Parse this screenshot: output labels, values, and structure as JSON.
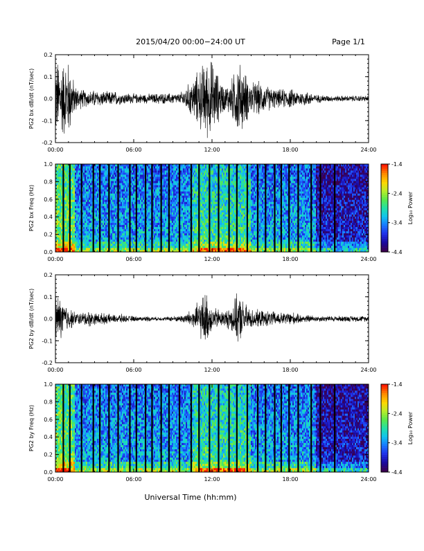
{
  "header": {
    "title": "2015/04/20  00:00−24:00 UT",
    "page": "Page 1/1"
  },
  "footer": {
    "xlabel": "Universal Time (hh:mm)"
  },
  "colors": {
    "trace": "#000000",
    "gap": "#000000",
    "colormap": [
      "#3a0050",
      "#1a0aa0",
      "#1f2ee8",
      "#1a78ff",
      "#11c3ee",
      "#21e0a8",
      "#5ae84a",
      "#b8ec2a",
      "#ffd600",
      "#ff8a00",
      "#ff1a00"
    ]
  },
  "chart_data": [
    {
      "type": "line",
      "ylabel": "PG2 bx dB/dt (nT/sec)",
      "ylim": [
        -0.2,
        0.2
      ],
      "yticks": [
        "-0.2",
        "-0.1",
        "0.0",
        "0.1",
        "0.2"
      ],
      "xlim": [
        0,
        24
      ],
      "xticks": [
        "00:00",
        "06:00",
        "12:00",
        "18:00",
        "24:00"
      ],
      "series": [
        {
          "x": [
            0,
            0.5,
            1,
            1.5,
            2,
            2.5,
            3,
            3.5,
            4,
            4.5,
            5,
            5.5,
            6,
            6.5,
            7,
            7.5,
            8,
            8.5,
            9,
            9.5,
            10,
            10.5,
            11,
            11.5,
            12,
            12.5,
            13,
            13.5,
            14,
            14.5,
            15,
            15.5,
            16,
            16.5,
            17,
            17.5,
            18,
            18.5,
            19,
            19.5,
            20,
            20.5,
            21,
            21.5,
            22,
            22.5,
            23,
            23.5,
            24
          ],
          "amplitude": [
            0.2,
            0.2,
            0.2,
            0.07,
            0.05,
            0.04,
            0.045,
            0.04,
            0.035,
            0.04,
            0.03,
            0.03,
            0.025,
            0.025,
            0.025,
            0.025,
            0.03,
            0.025,
            0.03,
            0.025,
            0.06,
            0.1,
            0.15,
            0.2,
            0.2,
            0.12,
            0.06,
            0.1,
            0.2,
            0.14,
            0.08,
            0.09,
            0.07,
            0.06,
            0.045,
            0.05,
            0.05,
            0.04,
            0.04,
            0.035,
            0.02,
            0.02,
            0.015,
            0.015,
            0.015,
            0.015,
            0.015,
            0.015,
            0.015
          ]
        }
      ]
    },
    {
      "type": "heatmap",
      "ylabel": "PG2 bx Freq (Hz)",
      "ylim": [
        0,
        1.0
      ],
      "yticks": [
        "0.0",
        "0.2",
        "0.4",
        "0.6",
        "0.8",
        "1.0"
      ],
      "xlim": [
        0,
        24
      ],
      "xticks": [
        "00:00",
        "06:00",
        "12:00",
        "18:00",
        "24:00"
      ],
      "colorbar": {
        "label": "Log₁₀ Power",
        "ticks": [
          "-1.4",
          "-2.4",
          "-3.4",
          "-4.4"
        ],
        "range": [
          -4.4,
          -1.4
        ]
      },
      "gaps_hours": [
        0.6,
        1.1,
        2.0,
        2.9,
        3.4,
        4.1,
        4.8,
        5.7,
        6.2,
        6.9,
        7.4,
        8.1,
        8.7,
        9.5,
        10.4,
        11.0,
        11.8,
        12.5,
        13.3,
        13.9,
        14.7,
        15.5,
        16.1,
        16.8,
        17.3,
        17.9,
        18.6,
        19.6,
        20.3,
        21.4
      ]
    },
    {
      "type": "line",
      "ylabel": "PG2 by dB/dt (nT/sec)",
      "ylim": [
        -0.2,
        0.2
      ],
      "yticks": [
        "-0.2",
        "-0.1",
        "0.0",
        "0.1",
        "0.2"
      ],
      "xlim": [
        0,
        24
      ],
      "xticks": [
        "00:00",
        "06:00",
        "12:00",
        "18:00",
        "24:00"
      ],
      "series": [
        {
          "x": [
            0,
            0.5,
            1,
            1.5,
            2,
            2.5,
            3,
            3.5,
            4,
            4.5,
            5,
            5.5,
            6,
            6.5,
            7,
            7.5,
            8,
            8.5,
            9,
            9.5,
            10,
            10.5,
            11,
            11.5,
            12,
            12.5,
            13,
            13.5,
            14,
            14.5,
            15,
            15.5,
            16,
            16.5,
            17,
            17.5,
            18,
            18.5,
            19,
            19.5,
            20,
            20.5,
            21,
            21.5,
            22,
            22.5,
            23,
            23.5,
            24
          ],
          "amplitude": [
            0.13,
            0.1,
            0.06,
            0.035,
            0.03,
            0.045,
            0.03,
            0.03,
            0.025,
            0.02,
            0.025,
            0.015,
            0.015,
            0.01,
            0.015,
            0.01,
            0.01,
            0.01,
            0.015,
            0.015,
            0.03,
            0.05,
            0.09,
            0.14,
            0.06,
            0.05,
            0.04,
            0.07,
            0.13,
            0.08,
            0.05,
            0.045,
            0.04,
            0.04,
            0.035,
            0.03,
            0.04,
            0.025,
            0.02,
            0.02,
            0.015,
            0.015,
            0.015,
            0.015,
            0.015,
            0.015,
            0.015,
            0.015,
            0.015
          ]
        }
      ]
    },
    {
      "type": "heatmap",
      "ylabel": "PG2 by Freq (Hz)",
      "ylim": [
        0,
        1.0
      ],
      "yticks": [
        "0.0",
        "0.2",
        "0.4",
        "0.6",
        "0.8",
        "1.0"
      ],
      "xlim": [
        0,
        24
      ],
      "xticks": [
        "00:00",
        "06:00",
        "12:00",
        "18:00",
        "24:00"
      ],
      "colorbar": {
        "label": "Log₁₀ Power",
        "ticks": [
          "-1.4",
          "-2.4",
          "-3.4",
          "-4.4"
        ],
        "range": [
          -4.4,
          -1.4
        ]
      },
      "gaps_hours": [
        0.6,
        1.1,
        2.0,
        2.9,
        3.4,
        4.1,
        4.8,
        5.7,
        6.2,
        6.9,
        7.4,
        8.1,
        8.7,
        9.5,
        10.4,
        11.0,
        11.8,
        12.5,
        13.3,
        13.9,
        14.7,
        15.5,
        16.1,
        16.8,
        17.3,
        17.9,
        18.6,
        19.6,
        20.3,
        21.4
      ]
    }
  ]
}
